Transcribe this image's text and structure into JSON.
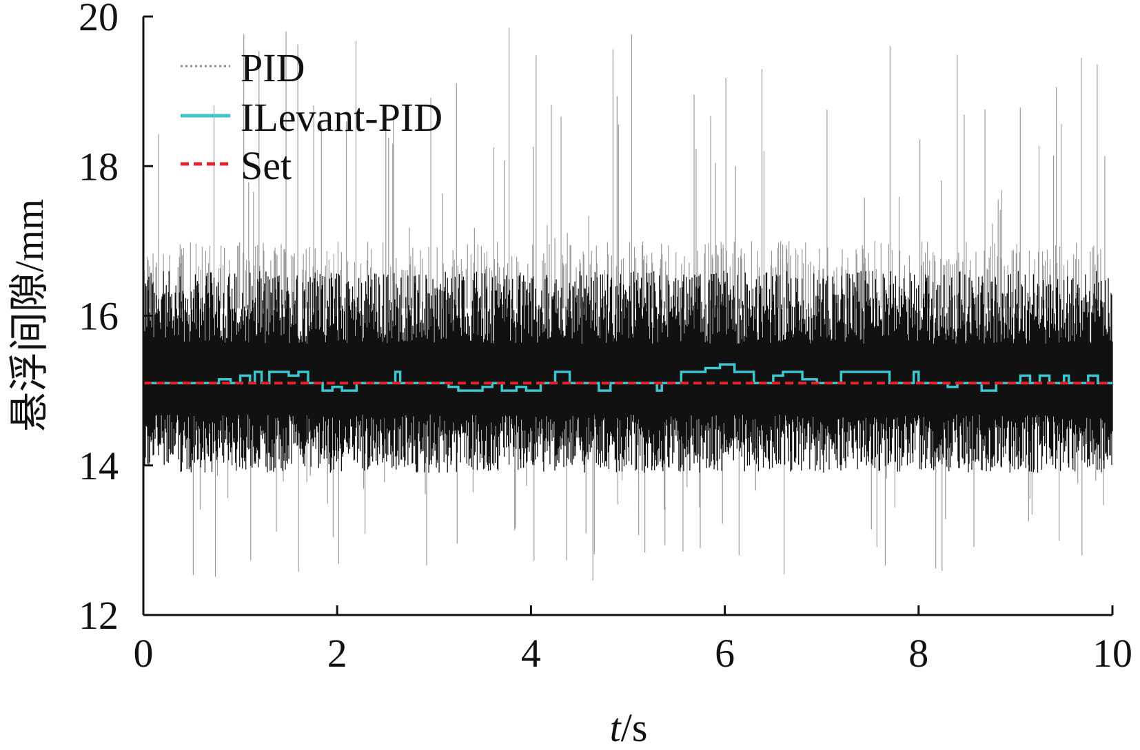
{
  "chart_data": {
    "type": "line",
    "xlabel_italic": "t",
    "xlabel_unit": "/s",
    "ylabel": "悬浮间隙/mm",
    "xlim": [
      0,
      10
    ],
    "ylim": [
      12,
      20
    ],
    "xticks": [
      "0",
      "2",
      "4",
      "6",
      "8",
      "10"
    ],
    "yticks": [
      "12",
      "14",
      "16",
      "18",
      "20"
    ],
    "legend_position": "top-left",
    "legend": [
      {
        "name": "PID",
        "color": "#8a8a8a",
        "style": "dotted"
      },
      {
        "name": "ILevant-PID",
        "color": "#3cc6cf",
        "style": "solid"
      },
      {
        "name": "Set",
        "color": "#e3242b",
        "style": "dashed"
      }
    ],
    "set_value": 15.1,
    "pid_noise": {
      "center": 15.1,
      "band_low": 13.9,
      "band_high": 16.6,
      "spikes_max": 19.9,
      "spikes_min": 12.4
    },
    "ilevant_steps": [
      [
        0,
        15.1
      ],
      [
        0.75,
        15.1
      ],
      [
        0.78,
        15.15
      ],
      [
        0.9,
        15.1
      ],
      [
        1.0,
        15.2
      ],
      [
        1.1,
        15.1
      ],
      [
        1.15,
        15.25
      ],
      [
        1.22,
        15.1
      ],
      [
        1.3,
        15.25
      ],
      [
        1.5,
        15.2
      ],
      [
        1.6,
        15.25
      ],
      [
        1.7,
        15.1
      ],
      [
        1.85,
        15.0
      ],
      [
        1.95,
        15.05
      ],
      [
        2.05,
        15.0
      ],
      [
        2.2,
        15.1
      ],
      [
        2.6,
        15.25
      ],
      [
        2.65,
        15.1
      ],
      [
        3.15,
        15.05
      ],
      [
        3.25,
        15.0
      ],
      [
        3.5,
        15.05
      ],
      [
        3.6,
        15.1
      ],
      [
        3.7,
        15.0
      ],
      [
        3.85,
        15.05
      ],
      [
        3.95,
        15.0
      ],
      [
        4.1,
        15.1
      ],
      [
        4.25,
        15.25
      ],
      [
        4.4,
        15.1
      ],
      [
        4.7,
        15.0
      ],
      [
        4.82,
        15.1
      ],
      [
        5.3,
        15.0
      ],
      [
        5.35,
        15.1
      ],
      [
        5.55,
        15.25
      ],
      [
        5.8,
        15.3
      ],
      [
        5.95,
        15.35
      ],
      [
        6.1,
        15.25
      ],
      [
        6.3,
        15.1
      ],
      [
        6.5,
        15.2
      ],
      [
        6.6,
        15.25
      ],
      [
        6.8,
        15.15
      ],
      [
        6.95,
        15.1
      ],
      [
        7.2,
        15.25
      ],
      [
        7.7,
        15.1
      ],
      [
        7.95,
        15.25
      ],
      [
        8.0,
        15.1
      ],
      [
        8.3,
        15.05
      ],
      [
        8.4,
        15.1
      ],
      [
        8.65,
        15.0
      ],
      [
        8.8,
        15.1
      ],
      [
        9.05,
        15.2
      ],
      [
        9.15,
        15.1
      ],
      [
        9.25,
        15.2
      ],
      [
        9.35,
        15.1
      ],
      [
        9.5,
        15.2
      ],
      [
        9.55,
        15.1
      ],
      [
        9.75,
        15.2
      ],
      [
        9.85,
        15.1
      ],
      [
        10,
        15.1
      ]
    ]
  }
}
